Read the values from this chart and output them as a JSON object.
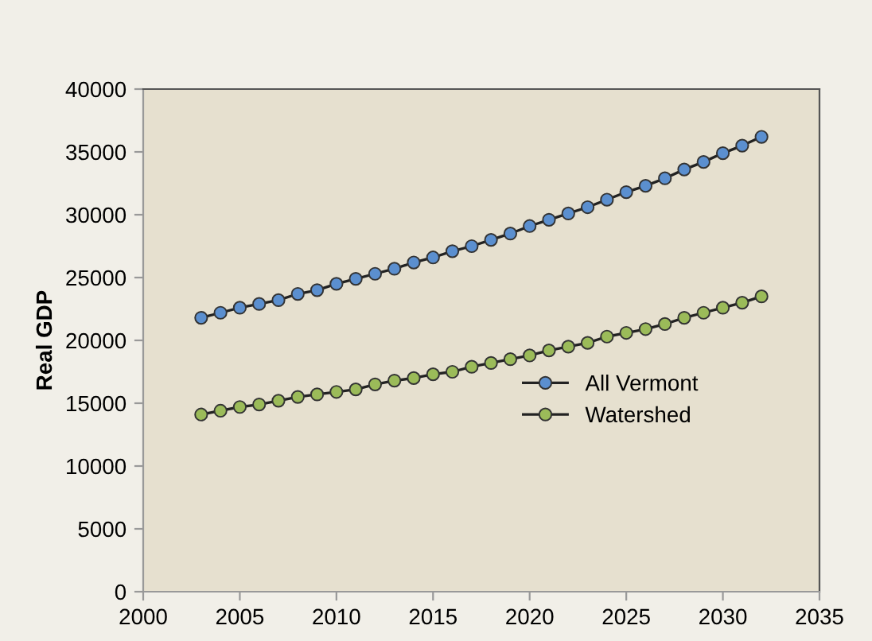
{
  "chart_data": {
    "type": "line",
    "ylabel": "Real GDP",
    "x": [
      2003,
      2004,
      2005,
      2006,
      2007,
      2008,
      2009,
      2010,
      2011,
      2012,
      2013,
      2014,
      2015,
      2016,
      2017,
      2018,
      2019,
      2020,
      2021,
      2022,
      2023,
      2024,
      2025,
      2026,
      2027,
      2028,
      2029,
      2030,
      2031,
      2032
    ],
    "series": [
      {
        "name": "All Vermont",
        "color": "#5b8fcf",
        "values": [
          21800,
          22200,
          22600,
          22900,
          23200,
          23700,
          24000,
          24500,
          24900,
          25300,
          25700,
          26200,
          26600,
          27100,
          27500,
          28000,
          28500,
          29100,
          29600,
          30100,
          30600,
          31200,
          31800,
          32300,
          32900,
          33600,
          34200,
          34900,
          35500,
          36200
        ]
      },
      {
        "name": "Watershed",
        "color": "#9bbb59",
        "values": [
          14100,
          14400,
          14700,
          14900,
          15200,
          15500,
          15700,
          15900,
          16100,
          16500,
          16800,
          17000,
          17300,
          17500,
          17900,
          18200,
          18500,
          18800,
          19200,
          19500,
          19800,
          20300,
          20600,
          20900,
          21300,
          21800,
          22200,
          22600,
          23000,
          23500
        ]
      }
    ],
    "xlim": [
      2000,
      2035
    ],
    "xticks": [
      2000,
      2005,
      2010,
      2015,
      2020,
      2025,
      2030,
      2035
    ],
    "ylim": [
      0,
      40000
    ],
    "yticks": [
      0,
      5000,
      10000,
      15000,
      20000,
      25000,
      30000,
      35000,
      40000
    ],
    "grid": false,
    "legend": "right",
    "marker": "circle",
    "line_style": "solid"
  }
}
